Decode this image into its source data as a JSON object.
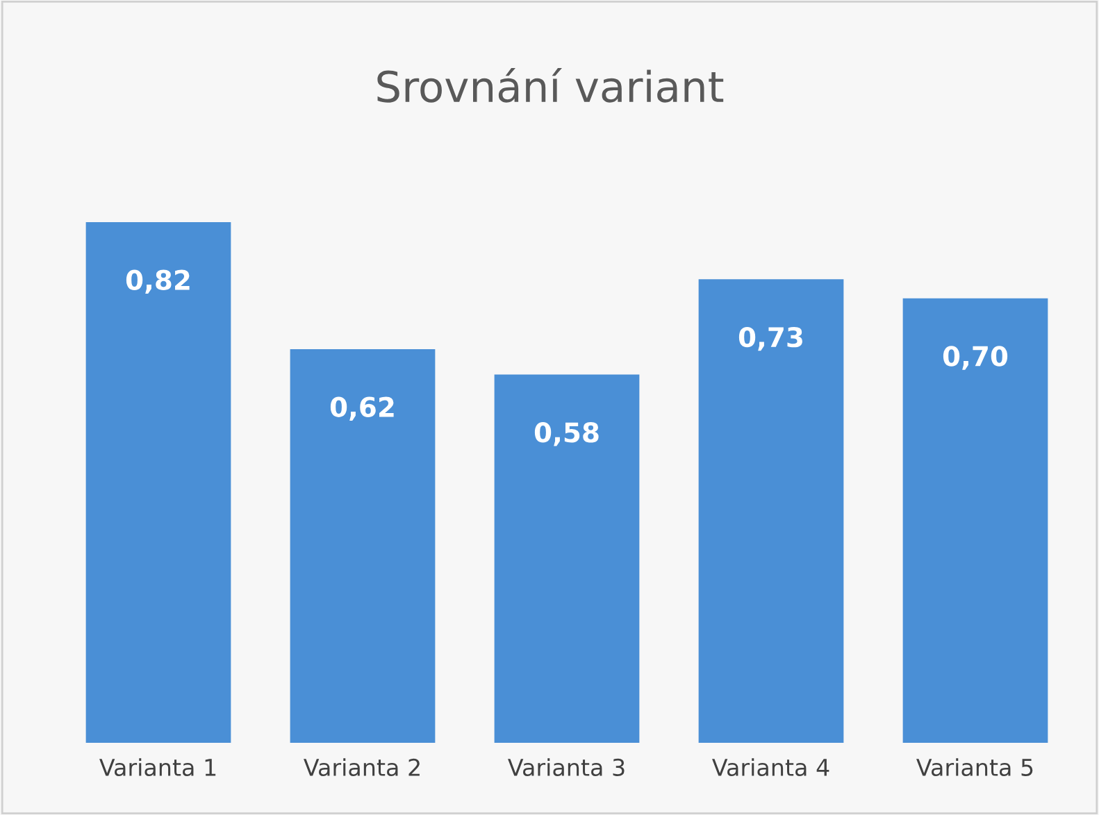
{
  "chart_data": {
    "type": "bar",
    "title": "Srovnání variant",
    "categories": [
      "Varianta 1",
      "Varianta 2",
      "Varianta 3",
      "Varianta 4",
      "Varianta 5"
    ],
    "values": [
      0.82,
      0.62,
      0.58,
      0.73,
      0.7
    ],
    "value_labels": [
      "0,82",
      "0,62",
      "0,58",
      "0,73",
      "0,70"
    ],
    "color": "#4a8fd6",
    "tick_labels": "x",
    "grid": false,
    "legend": false
  }
}
